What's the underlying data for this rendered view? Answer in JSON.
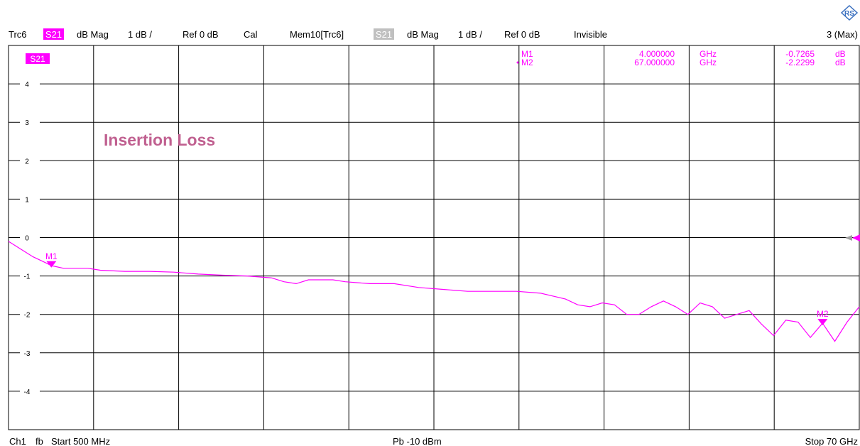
{
  "header": {
    "trace": "Trc6",
    "trace_param": "S21",
    "trace_format": "dB Mag",
    "trace_scale": "1 dB /",
    "trace_ref": "Ref 0 dB",
    "trace_cal": "Cal",
    "mem": "Mem10[Trc6]",
    "mem_param": "S21",
    "mem_format": "dB Mag",
    "mem_scale": "1 dB /",
    "mem_ref": "Ref 0 dB",
    "mem_state": "Invisible",
    "window": "3 (Max)"
  },
  "footer": {
    "channel": "Ch1",
    "mode": "fb",
    "start": "Start 500 MHz",
    "power": "Pb -10 dBm",
    "stop": "Stop 70 GHz"
  },
  "trace_tag": "S21",
  "annotation": "Insertion Loss",
  "markers": [
    {
      "name": "M1",
      "freq": "4.000000",
      "unit": "GHz",
      "value": "-0.7265",
      "vunit": "dB",
      "x": 4.0,
      "y": -0.7265,
      "active": false
    },
    {
      "name": "M2",
      "freq": "67.000000",
      "unit": "GHz",
      "value": "-2.2299",
      "vunit": "dB",
      "x": 67.0,
      "y": -2.2299,
      "active": true
    }
  ],
  "colors": {
    "trace": "#ff00ff",
    "grid": "#000000",
    "annotation": "#c06090",
    "mem_badge": "#c0c0c0",
    "ref_arrow": "#ff00ff",
    "ref_arrow_mem": "#a0a0a0"
  },
  "chart_data": {
    "type": "line",
    "title": "Insertion Loss",
    "xlabel": "",
    "ylabel": "",
    "xunit": "GHz",
    "yunit": "dB",
    "xlim": [
      0.5,
      70
    ],
    "ylim": [
      -5,
      5
    ],
    "yticks": [
      4,
      3,
      2,
      1,
      0,
      -1,
      -2,
      -3,
      -4
    ],
    "grid": true,
    "series": [
      {
        "name": "S21",
        "x": [
          0.5,
          1.5,
          2.5,
          3.5,
          4.0,
          5,
          6,
          7,
          8,
          10,
          12,
          14,
          16,
          18,
          20,
          22,
          23,
          24,
          25,
          26,
          27,
          28,
          30,
          32,
          34,
          36,
          38,
          40,
          42,
          44,
          46,
          47,
          48,
          49,
          50,
          51,
          52,
          53,
          54,
          55,
          56,
          57,
          58,
          59,
          60,
          61,
          62,
          63,
          64,
          65,
          66,
          67,
          68,
          69,
          70
        ],
        "y": [
          -0.1,
          -0.3,
          -0.5,
          -0.65,
          -0.73,
          -0.8,
          -0.8,
          -0.8,
          -0.85,
          -0.88,
          -0.88,
          -0.9,
          -0.95,
          -0.98,
          -1.0,
          -1.05,
          -1.15,
          -1.2,
          -1.1,
          -1.1,
          -1.1,
          -1.15,
          -1.2,
          -1.2,
          -1.3,
          -1.35,
          -1.4,
          -1.4,
          -1.4,
          -1.45,
          -1.6,
          -1.75,
          -1.8,
          -1.7,
          -1.75,
          -2.0,
          -2.0,
          -1.8,
          -1.65,
          -1.8,
          -2.0,
          -1.7,
          -1.8,
          -2.1,
          -2.0,
          -1.9,
          -2.25,
          -2.55,
          -2.15,
          -2.2,
          -2.6,
          -2.23,
          -2.7,
          -2.2,
          -1.8
        ]
      }
    ]
  }
}
